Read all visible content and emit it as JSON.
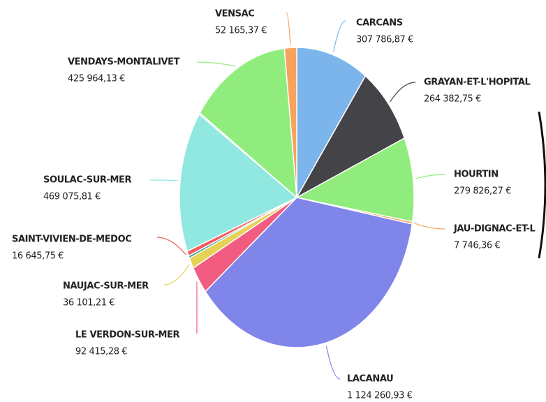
{
  "chart_data": {
    "type": "pie",
    "categories": [
      "CARCANS",
      "GRAYAN-ET-L'HOPITAL",
      "HOURTIN",
      "JAU-DIGNAC-ET-L",
      "LACANAU",
      "LE VERDON-SUR-MER",
      "NAUJAC-SUR-MER",
      null,
      "SAINT-VIVIEN-DE-MEDOC",
      "SOULAC-SUR-MER",
      null,
      "VENDAYS-MONTALIVET",
      "VENSAC"
    ],
    "values": [
      307786.87,
      264382.75,
      279826.27,
      7746.36,
      1124260.93,
      92415.28,
      36101.21,
      8000,
      16645.75,
      469075.81,
      5000,
      425964.13,
      52165.37
    ],
    "value_labels": [
      "307 786,87 €",
      "264 382,75 €",
      "279 826,27 €",
      "7 746,36 €",
      "1 124 260,93 €",
      "92 415,28 €",
      "36 101,21 €",
      null,
      "16 645,75 €",
      "469 075,81 €",
      null,
      "425 964,13 €",
      "52 165,37 €"
    ],
    "colors": [
      "#7cb5ec",
      "#434348",
      "#90ed7d",
      "#f7a35c",
      "#8085e9",
      "#f15c80",
      "#e4d354",
      "#2b908f",
      "#f45b5b",
      "#91e8e1",
      "#7cb5ec",
      "#90ed7d",
      "#f7a35c"
    ]
  }
}
